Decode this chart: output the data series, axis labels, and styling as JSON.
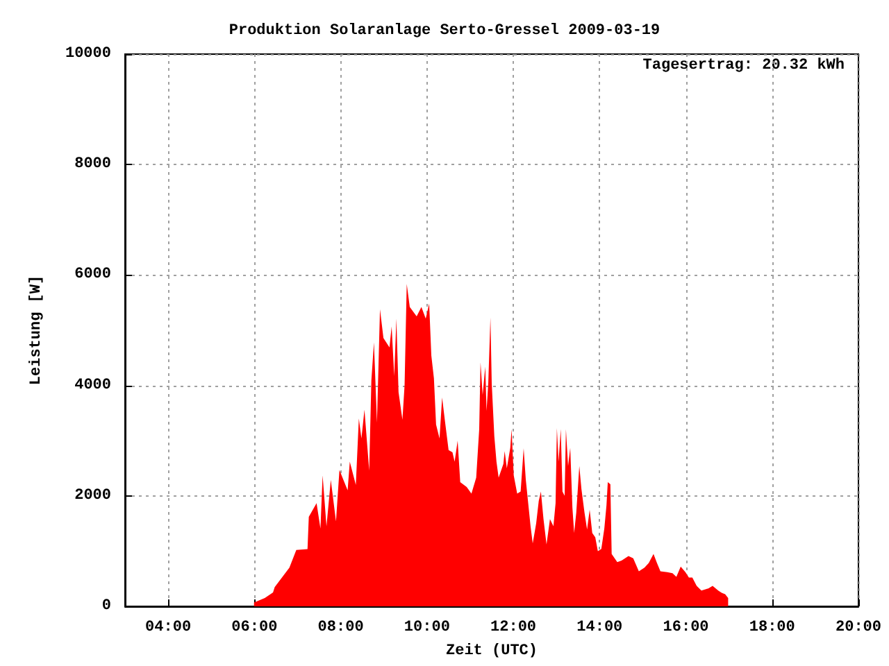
{
  "chart_data": {
    "type": "area",
    "title": "Produktion Solaranlage Serto-Gressel 2009-03-19",
    "xlabel": "Zeit (UTC)",
    "ylabel": "Leistung [W]",
    "annotations": [
      "Tagesertrag: 20.32 kWh"
    ],
    "xlim": [
      3,
      20
    ],
    "xticks": [
      {
        "value": 4,
        "label": "04:00"
      },
      {
        "value": 6,
        "label": "06:00"
      },
      {
        "value": 8,
        "label": "08:00"
      },
      {
        "value": 10,
        "label": "10:00"
      },
      {
        "value": 12,
        "label": "12:00"
      },
      {
        "value": 14,
        "label": "14:00"
      },
      {
        "value": 16,
        "label": "16:00"
      },
      {
        "value": 18,
        "label": "18:00"
      },
      {
        "value": 20,
        "label": "20:00"
      }
    ],
    "ylim": [
      0,
      10000
    ],
    "yticks": [
      0,
      2000,
      4000,
      6000,
      8000,
      10000
    ],
    "grid": true,
    "marker": "none",
    "x": [
      5.99,
      6.24,
      6.43,
      6.47,
      6.81,
      6.97,
      7.23,
      7.26,
      7.44,
      7.53,
      7.58,
      7.67,
      7.77,
      7.89,
      7.97,
      8.16,
      8.21,
      8.35,
      8.42,
      8.48,
      8.55,
      8.66,
      8.71,
      8.77,
      8.84,
      8.91,
      8.99,
      9.13,
      9.18,
      9.24,
      9.29,
      9.34,
      9.43,
      9.48,
      9.53,
      9.6,
      9.76,
      9.87,
      9.97,
      10.05,
      10.1,
      10.16,
      10.21,
      10.29,
      10.35,
      10.42,
      10.5,
      10.59,
      10.64,
      10.71,
      10.77,
      10.92,
      11.03,
      11.14,
      11.21,
      11.24,
      11.29,
      11.35,
      11.38,
      11.42,
      11.47,
      11.5,
      11.56,
      11.61,
      11.66,
      11.77,
      11.8,
      11.85,
      11.93,
      11.96,
      12.01,
      12.09,
      12.17,
      12.24,
      12.29,
      12.4,
      12.45,
      12.53,
      12.59,
      12.64,
      12.7,
      12.77,
      12.85,
      12.93,
      12.98,
      13.01,
      13.05,
      13.1,
      13.14,
      13.19,
      13.22,
      13.27,
      13.32,
      13.37,
      13.41,
      13.46,
      13.53,
      13.58,
      13.65,
      13.71,
      13.77,
      13.83,
      13.9,
      13.96,
      14.04,
      14.11,
      14.16,
      14.19,
      14.25,
      14.28,
      14.41,
      14.51,
      14.67,
      14.78,
      14.91,
      15.04,
      15.14,
      15.25,
      15.33,
      15.41,
      15.57,
      15.69,
      15.78,
      15.88,
      15.99,
      16.07,
      16.15,
      16.25,
      16.36,
      16.52,
      16.62,
      16.75,
      16.83,
      16.91,
      16.98
    ],
    "series": [
      {
        "color": "#ff0000",
        "values": [
          70,
          150,
          250,
          350,
          700,
          1020,
          1035,
          1620,
          1870,
          1410,
          2370,
          1450,
          2290,
          1540,
          2470,
          2100,
          2620,
          2200,
          3400,
          3040,
          3560,
          2460,
          4090,
          4780,
          3330,
          5380,
          4860,
          4690,
          5070,
          4170,
          5210,
          3880,
          3380,
          4000,
          5840,
          5420,
          5250,
          5420,
          5210,
          5480,
          4540,
          4130,
          3290,
          3040,
          3780,
          3330,
          2830,
          2790,
          2620,
          3000,
          2250,
          2160,
          2040,
          2330,
          3210,
          4420,
          3830,
          4340,
          3540,
          4040,
          5230,
          4040,
          3080,
          2620,
          2330,
          2580,
          2810,
          2500,
          2870,
          3210,
          2370,
          2040,
          2080,
          2860,
          2290,
          1450,
          1140,
          1500,
          1910,
          2080,
          1580,
          1120,
          1580,
          1450,
          1870,
          3230,
          2620,
          3210,
          2080,
          2000,
          3210,
          2540,
          2870,
          1790,
          1330,
          1700,
          2540,
          2120,
          1700,
          1390,
          1750,
          1330,
          1250,
          1000,
          1040,
          1410,
          1830,
          2250,
          2210,
          950,
          800,
          830,
          910,
          870,
          635,
          700,
          785,
          950,
          785,
          635,
          620,
          600,
          535,
          720,
          620,
          520,
          520,
          370,
          285,
          325,
          370,
          285,
          245,
          220,
          150
        ]
      }
    ]
  }
}
